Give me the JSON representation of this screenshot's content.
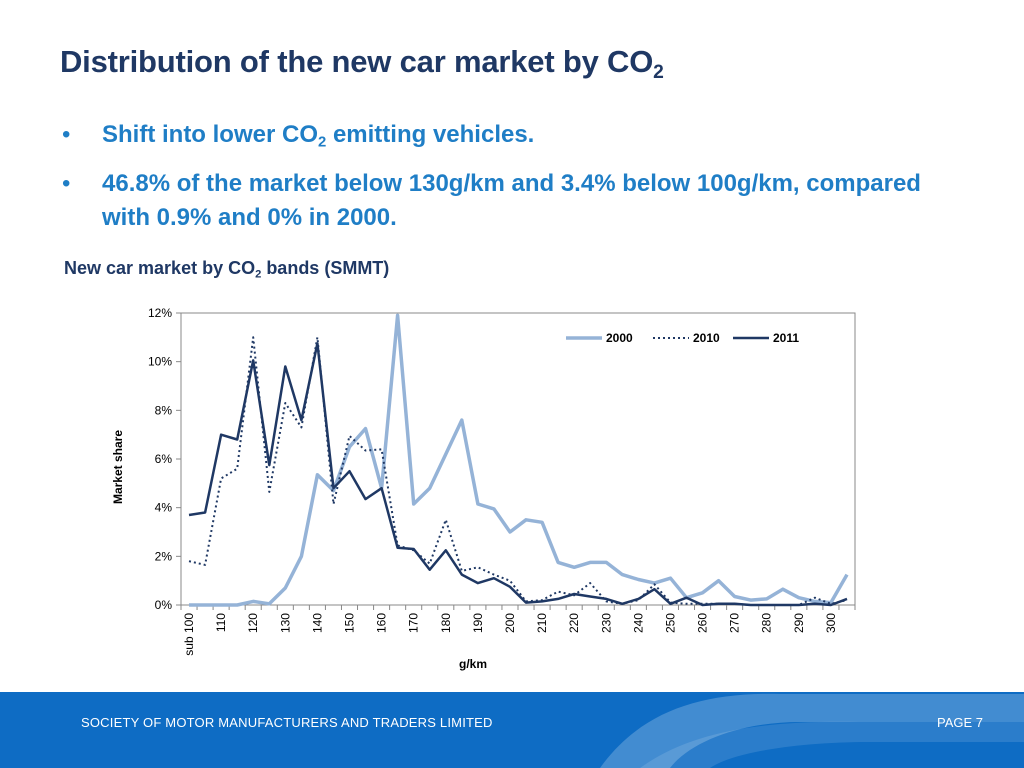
{
  "title": {
    "text": "Distribution of the new car market by CO",
    "sub": "2"
  },
  "bullets": [
    {
      "pre": "Shift into lower CO",
      "sub": "2",
      "post": " emitting vehicles."
    },
    {
      "pre": "46.8% of the market below 130g/km and 3.4% below 100g/km, compared with 0.9% and 0% in 2000.",
      "sub": "",
      "post": ""
    }
  ],
  "bullet_marker": "•",
  "caption": {
    "pre": "New car market by CO",
    "sub": "2",
    "post": " bands (SMMT)"
  },
  "chart_data": {
    "type": "line",
    "xlabel": "g/km",
    "ylabel": "Market share",
    "ylim": [
      0,
      12
    ],
    "yticks": [
      "0%",
      "2%",
      "4%",
      "6%",
      "8%",
      "10%",
      "12%"
    ],
    "grid": false,
    "legend": "top-right",
    "categories": [
      "sub 100",
      "105",
      "110",
      "115",
      "120",
      "125",
      "130",
      "135",
      "140",
      "145",
      "150",
      "155",
      "160",
      "165",
      "170",
      "175",
      "180",
      "185",
      "190",
      "195",
      "200",
      "205",
      "210",
      "215",
      "220",
      "225",
      "230",
      "235",
      "240",
      "245",
      "250",
      "255",
      "260",
      "265",
      "270",
      "275",
      "280",
      "285",
      "290",
      "295",
      "300",
      "305"
    ],
    "xtick_labels": [
      "sub 100",
      "110",
      "120",
      "130",
      "140",
      "150",
      "160",
      "170",
      "180",
      "190",
      "200",
      "210",
      "220",
      "230",
      "240",
      "250",
      "260",
      "270",
      "280",
      "290",
      "300"
    ],
    "series": [
      {
        "name": "2000",
        "color": "#95b3d7",
        "dash": "solid",
        "width": 3.5,
        "values": [
          0,
          0,
          0,
          0,
          0.15,
          0.05,
          0.7,
          2.0,
          5.35,
          4.7,
          6.5,
          7.25,
          4.8,
          11.9,
          4.15,
          4.8,
          6.2,
          7.6,
          4.15,
          3.95,
          3.0,
          3.5,
          3.4,
          1.75,
          1.55,
          1.75,
          1.75,
          1.25,
          1.05,
          0.9,
          1.1,
          0.3,
          0.5,
          1.0,
          0.35,
          0.2,
          0.25,
          0.65,
          0.3,
          0.15,
          0.1,
          1.25
        ]
      },
      {
        "name": "2010",
        "color": "#1f3864",
        "dash": "dotted",
        "width": 2,
        "values": [
          1.8,
          1.65,
          5.2,
          5.6,
          11.0,
          4.65,
          8.3,
          7.3,
          11.0,
          4.15,
          6.95,
          6.35,
          6.4,
          2.45,
          2.25,
          1.7,
          3.5,
          1.4,
          1.55,
          1.25,
          1.0,
          0.15,
          0.2,
          0.55,
          0.4,
          0.9,
          0.15,
          0.05,
          0.2,
          0.85,
          0.1,
          0.05,
          0.05,
          0.05,
          0.05,
          0.0,
          0.0,
          0.0,
          0.0,
          0.3,
          0.05,
          0.2
        ]
      },
      {
        "name": "2011",
        "color": "#1f3864",
        "dash": "solid",
        "width": 2.5,
        "values": [
          3.7,
          3.8,
          7.0,
          6.8,
          10.05,
          5.75,
          9.8,
          7.6,
          10.75,
          4.8,
          5.5,
          4.35,
          4.8,
          2.35,
          2.3,
          1.45,
          2.25,
          1.25,
          0.9,
          1.1,
          0.75,
          0.1,
          0.15,
          0.25,
          0.45,
          0.35,
          0.25,
          0.05,
          0.25,
          0.65,
          0.05,
          0.3,
          0.0,
          0.05,
          0.05,
          0.0,
          0.0,
          0.0,
          0.0,
          0.05,
          0.0,
          0.25
        ]
      }
    ]
  },
  "footer": {
    "left": "SOCIETY OF MOTOR MANUFACTURERS AND TRADERS LIMITED",
    "right": "PAGE 7"
  }
}
